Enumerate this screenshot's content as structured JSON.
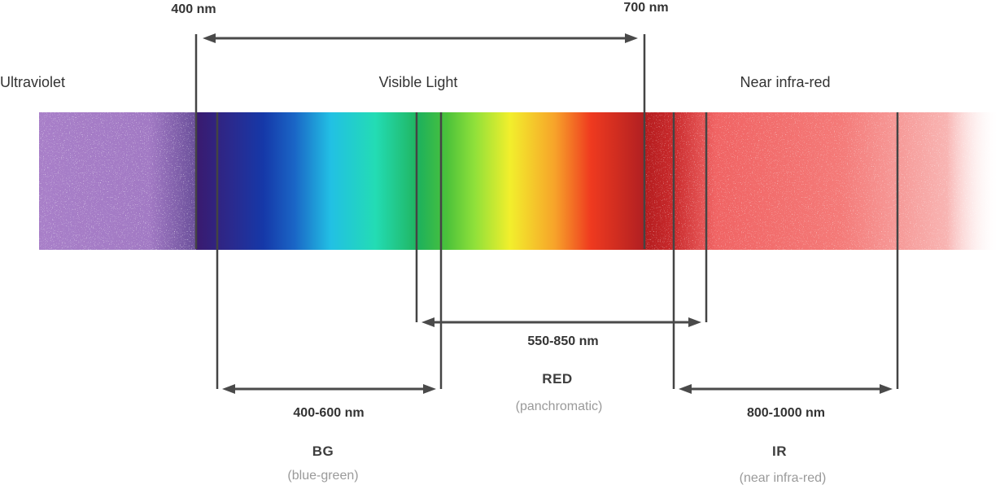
{
  "regions": {
    "ultraviolet": "Ultraviolet",
    "visible": "Visible Light",
    "near_ir": "Near infra-red"
  },
  "markers": {
    "left": "400 nm",
    "right": "700 nm"
  },
  "bands": {
    "bg": {
      "range": "400-600 nm",
      "name": "BG",
      "desc": "(blue-green)"
    },
    "red": {
      "range": "550-850 nm",
      "name": "RED",
      "desc": "(panchromatic)"
    },
    "ir": {
      "range": "800-1000 nm",
      "name": "IR",
      "desc": "(near infra-red)"
    }
  },
  "colors": {
    "ultraviolet": "#a77cc6",
    "violet": "#3a1a78",
    "blue": "#1436a8",
    "cyan": "#22c0e4",
    "teal": "#23dcb4",
    "green": "#22b25c",
    "lime": "#8ee03a",
    "yellow": "#f2ef2c",
    "orange": "#f7a32a",
    "red": "#ef3a1f",
    "deep_red": "#b01f22",
    "near_ir": "#f26a6a",
    "lines": "#444444"
  }
}
